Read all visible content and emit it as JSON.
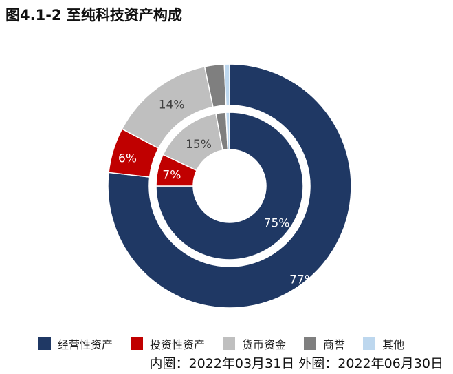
{
  "chart_data": {
    "type": "donut",
    "title": "图4.1-2 至纯科技资产构成",
    "caption": "内圈：2022年03月31日 外圈：2022年06月30日",
    "categories": [
      "经营性资产",
      "投资性资产",
      "货币资金",
      "商誉",
      "其他"
    ],
    "colors": [
      "#1f3864",
      "#c00000",
      "#bfbfbf",
      "#7f7f7f",
      "#bdd7ee"
    ],
    "label_colors": [
      "#ffffff",
      "#ffffff",
      "#404040",
      "#404040",
      "#404040"
    ],
    "series": [
      {
        "ring": "inner",
        "values": [
          75,
          7,
          15,
          2.2,
          0.8
        ],
        "labels": [
          "75%",
          "7%",
          "15%",
          "",
          ""
        ]
      },
      {
        "ring": "outer",
        "values": [
          77,
          6,
          14,
          2.6,
          0.7
        ],
        "labels": [
          "77%",
          "6%",
          "14%",
          "",
          ""
        ]
      }
    ],
    "legend_position": "bottom"
  }
}
